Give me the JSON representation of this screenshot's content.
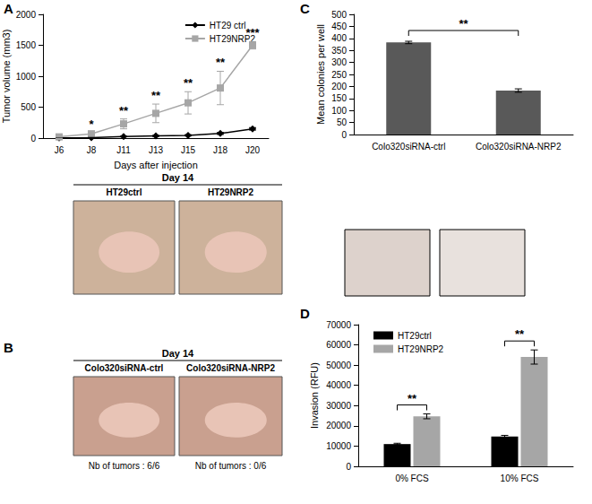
{
  "chart_data": [
    {
      "type": "line",
      "panel": "A",
      "xlabel": "Days after injection",
      "ylabel": "Tumor volume (mm3)",
      "categories": [
        "J6",
        "J8",
        "J11",
        "J13",
        "J15",
        "J18",
        "J20"
      ],
      "series": [
        {
          "name": "HT29 ctrl",
          "color": "#000000",
          "marker": "diamond",
          "values": [
            5,
            8,
            25,
            35,
            45,
            75,
            150
          ],
          "errors": [
            2,
            3,
            5,
            8,
            10,
            15,
            20
          ]
        },
        {
          "name": "HT29NRP2",
          "color": "#a6a6a6",
          "marker": "square",
          "values": [
            20,
            70,
            230,
            400,
            570,
            810,
            1500
          ],
          "errors": [
            5,
            20,
            80,
            150,
            180,
            270,
            60
          ]
        }
      ],
      "ylim": [
        0,
        2000
      ],
      "yticks": [
        0,
        500,
        1000,
        1500,
        2000
      ],
      "grid": false,
      "legend": "top-right",
      "annotations": [
        {
          "category": "J8",
          "text": "*"
        },
        {
          "category": "J11",
          "text": "**"
        },
        {
          "category": "J13",
          "text": "**"
        },
        {
          "category": "J15",
          "text": "**"
        },
        {
          "category": "J18",
          "text": "**"
        },
        {
          "category": "J20",
          "text": "***"
        }
      ]
    },
    {
      "type": "bar",
      "panel": "C",
      "ylabel": "Mean colonies per well",
      "categories": [
        "Colo320siRNA-ctrl",
        "Colo320siRNA-NRP2"
      ],
      "values": [
        383,
        183
      ],
      "errors": [
        5,
        7
      ],
      "color": "#595959",
      "ylim": [
        0,
        500
      ],
      "yticks": [
        0,
        50,
        100,
        150,
        200,
        250,
        300,
        350,
        400,
        450,
        500
      ],
      "grid": false,
      "annotations": [
        {
          "from": "Colo320siRNA-ctrl",
          "to": "Colo320siRNA-NRP2",
          "text": "**"
        }
      ]
    },
    {
      "type": "bar",
      "panel": "D",
      "ylabel": "Invasion (RFU)",
      "categories": [
        "0% FCS",
        "10% FCS"
      ],
      "series": [
        {
          "name": "HT29ctrl",
          "color": "#000000",
          "values": [
            11000,
            14700
          ],
          "errors": [
            400,
            600
          ]
        },
        {
          "name": "HT29NRP2",
          "color": "#a6a6a6",
          "values": [
            24700,
            54000
          ],
          "errors": [
            1200,
            3500
          ]
        }
      ],
      "ylim": [
        0,
        70000
      ],
      "yticks": [
        0,
        10000,
        20000,
        30000,
        40000,
        50000,
        60000,
        70000
      ],
      "grid": false,
      "legend": "top-left",
      "annotations": [
        {
          "category": "0% FCS",
          "text": "**"
        },
        {
          "category": "10% FCS",
          "text": "**"
        }
      ]
    }
  ],
  "photos": [
    {
      "title": "Day 14",
      "labels": [
        "HT29ctrl",
        "HT29NRP2"
      ]
    },
    {
      "panel": "B",
      "title": "Day 14",
      "labels": [
        "Colo320siRNA-ctrl",
        "Colo320siRNA-NRP2"
      ],
      "notes": [
        "Nb of tumors : 6/6",
        "Nb of tumors : 0/6"
      ]
    }
  ]
}
